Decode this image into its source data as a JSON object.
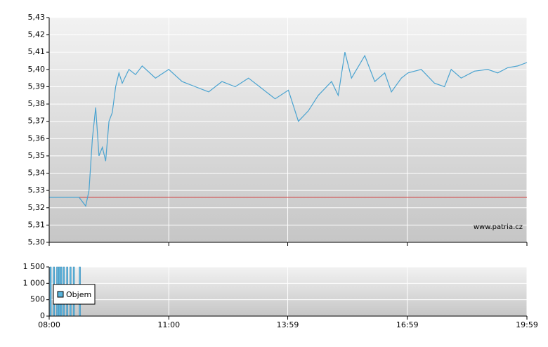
{
  "chart_data": [
    {
      "type": "line",
      "annotation": "www.patria.cz",
      "x": [
        "08:00",
        "08:45",
        "08:55",
        "09:00",
        "09:05",
        "09:10",
        "09:15",
        "09:20",
        "09:25",
        "09:30",
        "09:35",
        "09:40",
        "09:45",
        "09:50",
        "10:00",
        "10:10",
        "10:20",
        "10:40",
        "11:00",
        "11:20",
        "11:40",
        "12:00",
        "12:20",
        "12:40",
        "13:00",
        "13:20",
        "13:40",
        "14:00",
        "14:15",
        "14:30",
        "14:45",
        "15:05",
        "15:15",
        "15:25",
        "15:35",
        "15:55",
        "16:10",
        "16:25",
        "16:35",
        "16:50",
        "17:00",
        "17:20",
        "17:40",
        "17:55",
        "18:05",
        "18:20",
        "18:40",
        "19:00",
        "19:15",
        "19:30",
        "19:45",
        "19:59"
      ],
      "series": [
        {
          "color": "#4aa3d0",
          "values": [
            5.326,
            5.326,
            5.321,
            5.33,
            5.36,
            5.378,
            5.35,
            5.355,
            5.347,
            5.37,
            5.375,
            5.39,
            5.398,
            5.392,
            5.4,
            5.397,
            5.402,
            5.395,
            5.4,
            5.393,
            5.39,
            5.387,
            5.393,
            5.39,
            5.395,
            5.389,
            5.383,
            5.388,
            5.37,
            5.376,
            5.385,
            5.393,
            5.385,
            5.41,
            5.395,
            5.408,
            5.393,
            5.398,
            5.387,
            5.395,
            5.398,
            5.4,
            5.392,
            5.39,
            5.4,
            5.395,
            5.399,
            5.4,
            5.398,
            5.401,
            5.402,
            5.404
          ]
        }
      ],
      "reference_line": {
        "value": 5.326,
        "color": "#d04040"
      },
      "xlim": [
        "08:00",
        "19:59"
      ],
      "xticks": [
        "08:00",
        "11:00",
        "13:59",
        "16:59",
        "19:59"
      ],
      "ylim": [
        5.3,
        5.43
      ],
      "yticks": [
        {
          "value": 5.3,
          "label": "5,30"
        },
        {
          "value": 5.31,
          "label": "5,31"
        },
        {
          "value": 5.32,
          "label": "5,32"
        },
        {
          "value": 5.33,
          "label": "5,33"
        },
        {
          "value": 5.34,
          "label": "5,34"
        },
        {
          "value": 5.35,
          "label": "5,35"
        },
        {
          "value": 5.36,
          "label": "5,36"
        },
        {
          "value": 5.37,
          "label": "5,37"
        },
        {
          "value": 5.38,
          "label": "5,38"
        },
        {
          "value": 5.39,
          "label": "5,39"
        },
        {
          "value": 5.4,
          "label": "5,40"
        },
        {
          "value": 5.41,
          "label": "5,41"
        },
        {
          "value": 5.42,
          "label": "5,42"
        },
        {
          "value": 5.43,
          "label": "5,43"
        }
      ],
      "grid": true
    },
    {
      "type": "bar",
      "x": [
        "08:00",
        "08:05",
        "08:10",
        "08:13",
        "08:16",
        "08:20",
        "08:25",
        "08:30",
        "08:35",
        "08:44"
      ],
      "series": [
        {
          "name": "Objem",
          "color": "#5ab4dc",
          "values": [
            1500,
            1500,
            1500,
            1500,
            1500,
            1500,
            1500,
            1500,
            1500,
            1500
          ]
        }
      ],
      "xlim": [
        "08:00",
        "19:59"
      ],
      "xticks": [
        "08:00",
        "11:00",
        "13:59",
        "16:59",
        "19:59"
      ],
      "ylim": [
        0,
        1500
      ],
      "yticks": [
        0,
        500,
        {
          "value": 1000,
          "label": "1 000"
        },
        {
          "value": 1500,
          "label": "1 500"
        }
      ],
      "grid": true,
      "legend": "left"
    }
  ]
}
